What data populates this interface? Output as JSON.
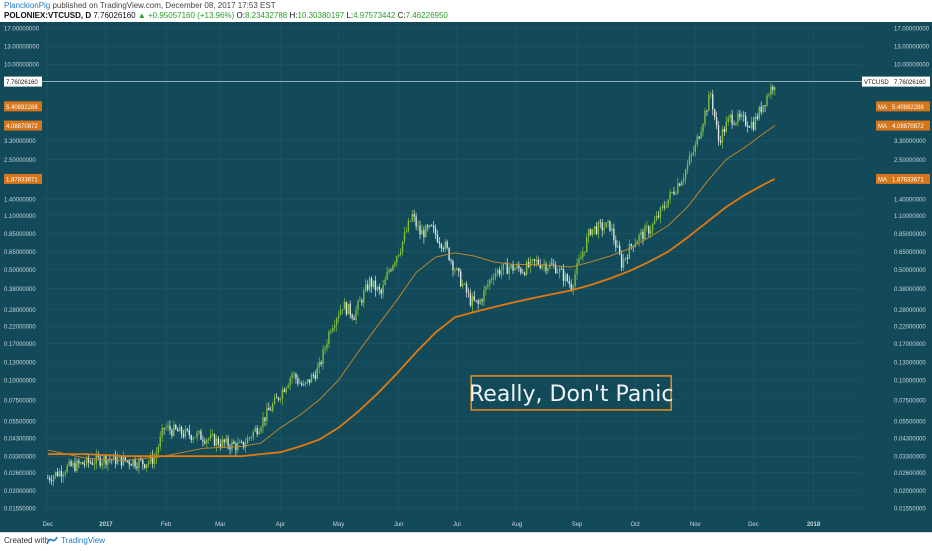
{
  "header": {
    "author": "PlanckionPig",
    "published": "published on TradingView.com, December 08, 2017 17:53 EST",
    "symbol": "POLONIEX:VTCUSD, D",
    "last": "7.76026160",
    "change": "▲ +0.95057160 (+13.96%)",
    "o_label": "O:",
    "o_value": "8.23432788",
    "h_label": "H:",
    "h_value": "10.30380197",
    "l_label": "L:",
    "l_value": "4.97573442",
    "c_label": "C:",
    "c_value": "7.46226950"
  },
  "footer": {
    "created_with": "Created with",
    "brand": "TradingView"
  },
  "colors": {
    "background": "#134a5a",
    "grid": "#1c5868",
    "candle_up": "#7fbf3f",
    "candle_down": "#dde3e6",
    "ma_fast": "#c98a2a",
    "ma_slow": "#e07a10",
    "price_line": "#b8d0d8",
    "annotation": "#e0891a"
  },
  "chart_data": {
    "type": "candlestick",
    "scale": "log",
    "ylim": [
      0.0138,
      18.5
    ],
    "y_ticks": [
      "0.01550000",
      "0.02000000",
      "0.02600000",
      "0.03300000",
      "0.04300000",
      "0.05500000",
      "0.07500000",
      "0.10000000",
      "0.13000000",
      "0.17000000",
      "0.22000000",
      "0.28000000",
      "0.38000000",
      "0.50000000",
      "0.65000000",
      "0.85000000",
      "1.10000000",
      "1.40000000",
      "1.87833671",
      "2.50000000",
      "3.30000000",
      "4.08870872",
      "5.40892288",
      "7.76026160",
      "10.00000000",
      "13.00000000",
      "17.00000000"
    ],
    "y_tick_values": [
      0.0155,
      0.02,
      0.026,
      0.033,
      0.043,
      0.055,
      0.075,
      0.1,
      0.13,
      0.17,
      0.22,
      0.28,
      0.38,
      0.5,
      0.65,
      0.85,
      1.1,
      1.4,
      1.87833671,
      2.5,
      3.3,
      4.08870872,
      5.40892288,
      7.7602616,
      10.0,
      13.0,
      17.0
    ],
    "x_ticks": [
      "Dec",
      "2017",
      "Feb",
      "Mar",
      "Apr",
      "May",
      "Jun",
      "Jul",
      "Aug",
      "Sep",
      "Oct",
      "Nov",
      "Dec",
      "2018"
    ],
    "x_tick_days": [
      0,
      30,
      61,
      89,
      120,
      150,
      181,
      211,
      242,
      273,
      303,
      334,
      364,
      395
    ],
    "x_range_days": [
      -3,
      420
    ],
    "price_trajectory": [
      [
        0,
        0.024
      ],
      [
        10,
        0.028
      ],
      [
        20,
        0.03
      ],
      [
        30,
        0.032
      ],
      [
        40,
        0.031
      ],
      [
        50,
        0.03
      ],
      [
        55,
        0.032
      ],
      [
        60,
        0.05
      ],
      [
        70,
        0.046
      ],
      [
        80,
        0.044
      ],
      [
        90,
        0.04
      ],
      [
        100,
        0.038
      ],
      [
        108,
        0.05
      ],
      [
        118,
        0.075
      ],
      [
        126,
        0.11
      ],
      [
        132,
        0.09
      ],
      [
        140,
        0.12
      ],
      [
        146,
        0.22
      ],
      [
        152,
        0.3
      ],
      [
        158,
        0.26
      ],
      [
        166,
        0.42
      ],
      [
        172,
        0.35
      ],
      [
        176,
        0.5
      ],
      [
        182,
        0.7
      ],
      [
        188,
        1.1
      ],
      [
        192,
        0.85
      ],
      [
        198,
        0.9
      ],
      [
        205,
        0.7
      ],
      [
        212,
        0.45
      ],
      [
        218,
        0.32
      ],
      [
        222,
        0.3
      ],
      [
        230,
        0.48
      ],
      [
        238,
        0.52
      ],
      [
        245,
        0.5
      ],
      [
        252,
        0.56
      ],
      [
        262,
        0.52
      ],
      [
        270,
        0.4
      ],
      [
        280,
        0.9
      ],
      [
        290,
        0.95
      ],
      [
        296,
        0.55
      ],
      [
        302,
        0.75
      ],
      [
        312,
        0.95
      ],
      [
        320,
        1.4
      ],
      [
        328,
        2.0
      ],
      [
        334,
        3.0
      ],
      [
        338,
        4.5
      ],
      [
        342,
        6.5
      ],
      [
        346,
        3.3
      ],
      [
        352,
        4.6
      ],
      [
        358,
        4.4
      ],
      [
        364,
        4.2
      ],
      [
        368,
        5.3
      ],
      [
        372,
        6.7
      ],
      [
        375,
        7.76
      ]
    ],
    "series": [
      {
        "name": "MA",
        "label": "5.40892288"
      },
      {
        "name": "MA",
        "label": "4.08870872"
      },
      {
        "name": "MA",
        "label": "1.87833671"
      }
    ],
    "ma_fast_path": [
      [
        0,
        0.036
      ],
      [
        20,
        0.032
      ],
      [
        40,
        0.031
      ],
      [
        60,
        0.033
      ],
      [
        80,
        0.037
      ],
      [
        100,
        0.038
      ],
      [
        110,
        0.04
      ],
      [
        120,
        0.05
      ],
      [
        130,
        0.06
      ],
      [
        140,
        0.075
      ],
      [
        150,
        0.1
      ],
      [
        160,
        0.15
      ],
      [
        170,
        0.22
      ],
      [
        180,
        0.32
      ],
      [
        190,
        0.48
      ],
      [
        200,
        0.6
      ],
      [
        210,
        0.64
      ],
      [
        220,
        0.61
      ],
      [
        230,
        0.56
      ],
      [
        240,
        0.54
      ],
      [
        250,
        0.54
      ],
      [
        260,
        0.53
      ],
      [
        270,
        0.52
      ],
      [
        280,
        0.56
      ],
      [
        290,
        0.61
      ],
      [
        300,
        0.68
      ],
      [
        310,
        0.8
      ],
      [
        320,
        0.95
      ],
      [
        330,
        1.25
      ],
      [
        340,
        1.8
      ],
      [
        350,
        2.5
      ],
      [
        360,
        3.0
      ],
      [
        370,
        3.7
      ],
      [
        375,
        4.089
      ]
    ],
    "ma_slow_path": [
      [
        0,
        0.034
      ],
      [
        20,
        0.034
      ],
      [
        40,
        0.033
      ],
      [
        60,
        0.033
      ],
      [
        80,
        0.033
      ],
      [
        100,
        0.033
      ],
      [
        110,
        0.034
      ],
      [
        120,
        0.035
      ],
      [
        130,
        0.038
      ],
      [
        140,
        0.042
      ],
      [
        150,
        0.05
      ],
      [
        160,
        0.063
      ],
      [
        170,
        0.082
      ],
      [
        180,
        0.11
      ],
      [
        190,
        0.15
      ],
      [
        200,
        0.2
      ],
      [
        210,
        0.25
      ],
      [
        220,
        0.27
      ],
      [
        230,
        0.29
      ],
      [
        240,
        0.31
      ],
      [
        250,
        0.33
      ],
      [
        260,
        0.35
      ],
      [
        270,
        0.37
      ],
      [
        280,
        0.4
      ],
      [
        290,
        0.44
      ],
      [
        300,
        0.49
      ],
      [
        310,
        0.56
      ],
      [
        320,
        0.65
      ],
      [
        330,
        0.8
      ],
      [
        340,
        1.0
      ],
      [
        350,
        1.25
      ],
      [
        360,
        1.5
      ],
      [
        370,
        1.75
      ],
      [
        375,
        1.878
      ]
    ],
    "last_price": 7.7602616,
    "last_price_label": "7.76026160",
    "symbol_tag": "VTCUSD",
    "annotations": [
      {
        "text": "Really, Don't Panic",
        "day": 270,
        "price": 0.083
      }
    ]
  }
}
